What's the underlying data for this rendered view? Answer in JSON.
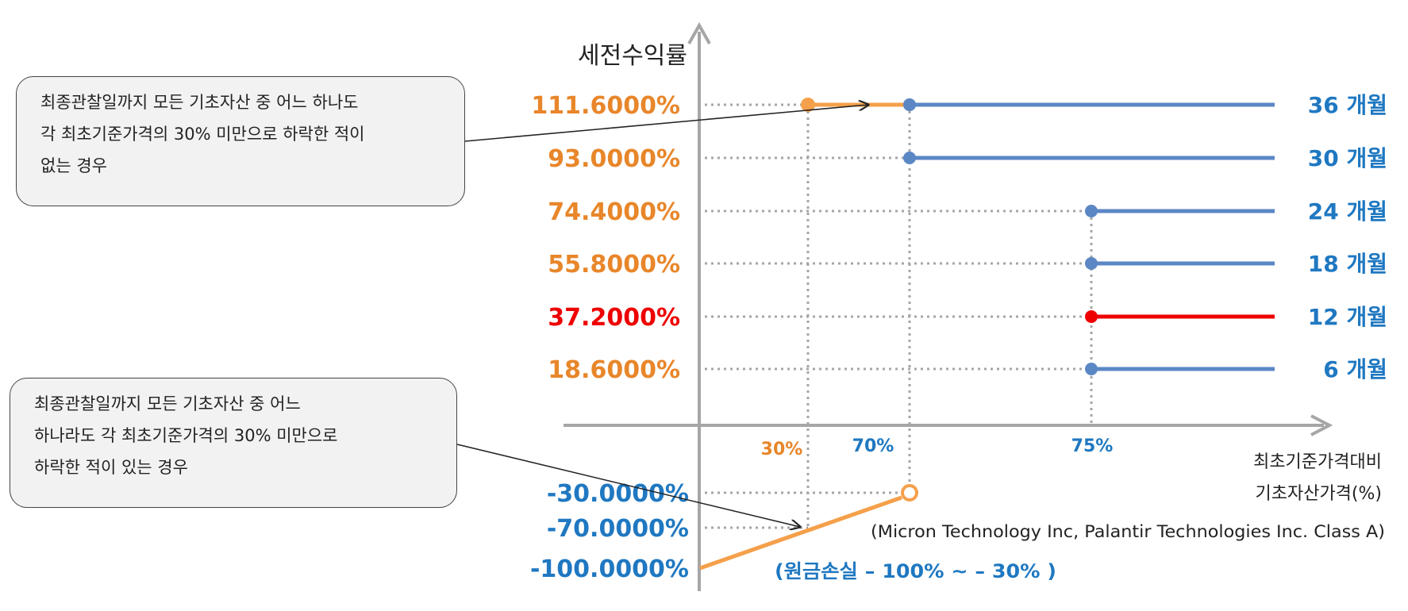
{
  "chart_data": {
    "type": "line",
    "ylabel": "세전수익률",
    "xlabel_lines": [
      "최초기준가격대비",
      "기초자산가격(%)"
    ],
    "underlyings": "(Micron Technology Inc, Palantir Technologies Inc. Class A)",
    "loss_note": "(원금손실 – 100% ~ – 30% )",
    "x_ticks": [
      {
        "value": 30,
        "label": "30%",
        "color": "#e8862a"
      },
      {
        "value": 70,
        "label": "70%",
        "color": "#1f78c1"
      },
      {
        "value": 75,
        "label": "75%",
        "color": "#1f78c1"
      }
    ],
    "series": [
      {
        "name": "36 개월",
        "barrier": 70,
        "return_label": "111.6000%",
        "return": 111.6,
        "label_color": "#e8862a",
        "line_color": "#5b87c5",
        "highlight": false
      },
      {
        "name": "30 개월",
        "barrier": 70,
        "return_label": "93.0000%",
        "return": 93.0,
        "label_color": "#e8862a",
        "line_color": "#5b87c5",
        "highlight": false
      },
      {
        "name": "24 개월",
        "barrier": 75,
        "return_label": "74.4000%",
        "return": 74.4,
        "label_color": "#e8862a",
        "line_color": "#5b87c5",
        "highlight": false
      },
      {
        "name": "18 개월",
        "barrier": 75,
        "return_label": "55.8000%",
        "return": 55.8,
        "label_color": "#e8862a",
        "line_color": "#5b87c5",
        "highlight": false
      },
      {
        "name": "12 개월",
        "barrier": 75,
        "return_label": "37.2000%",
        "return": 37.2,
        "label_color": "#ee0000",
        "line_color": "#ee0000",
        "highlight": true
      },
      {
        "name": "6 개월",
        "barrier": 75,
        "return_label": "18.6000%",
        "return": 18.6,
        "label_color": "#e8862a",
        "line_color": "#5b87c5",
        "highlight": false
      }
    ],
    "knock_in_segment": {
      "from_x": 30,
      "to_x": 70,
      "return": 111.6,
      "color": "#f5a04a"
    },
    "loss_labels": [
      {
        "return": -30.0,
        "label": "-30.0000%"
      },
      {
        "return": -70.0,
        "label": "-70.0000%"
      },
      {
        "return": -100.0,
        "label": "-100.0000%"
      }
    ],
    "loss_line": {
      "points": [
        [
          0,
          -100
        ],
        [
          70,
          -30
        ]
      ],
      "color": "#f5a04a"
    },
    "loss_label_color": "#1f78c1"
  },
  "callouts": {
    "top": {
      "lines": [
        "최종관찰일까지 모든 기초자산 중 어느 하나도",
        "각 최초기준가격의 30% 미만으로 하락한 적이",
        "없는 경우"
      ],
      "target": {
        "x": 50,
        "return": 111.6
      }
    },
    "bottom": {
      "lines": [
        "최종관찰일까지 모든 기초자산 중 어느",
        "하나라도 각 최초기준가격의 30% 미만으로",
        "하락한 적이 있는 경우"
      ],
      "target": {
        "x": 30,
        "return": -50
      }
    }
  }
}
